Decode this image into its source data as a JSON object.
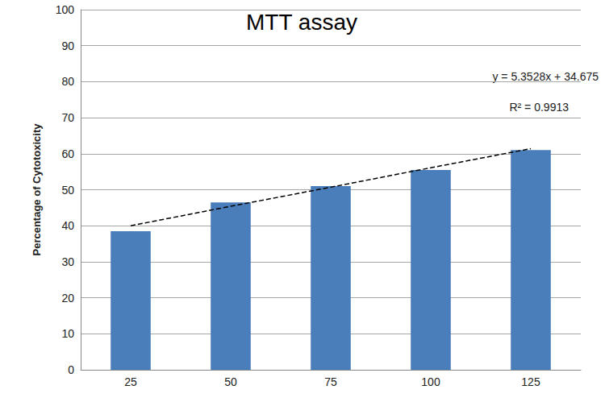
{
  "chart_data": {
    "type": "bar",
    "title": "MTT assay",
    "y_label": "Percentage of Cytotoxicity",
    "categories": [
      "25",
      "50",
      "75",
      "100",
      "125"
    ],
    "values": [
      38.5,
      46.5,
      51,
      55.5,
      61
    ],
    "color": "#4a7ebb",
    "trendline": {
      "type": "line",
      "values": [
        40,
        45.4,
        50.7,
        56.1,
        61.4
      ],
      "color": "#000000",
      "line_style": "dashed"
    },
    "annotations": [
      "y = 5.3528x + 34.675",
      "R² = 0.9913"
    ],
    "ylim": [
      0,
      100
    ],
    "yticks": [
      0,
      10,
      20,
      30,
      40,
      50,
      60,
      70,
      80,
      90,
      100
    ],
    "grid": true
  }
}
